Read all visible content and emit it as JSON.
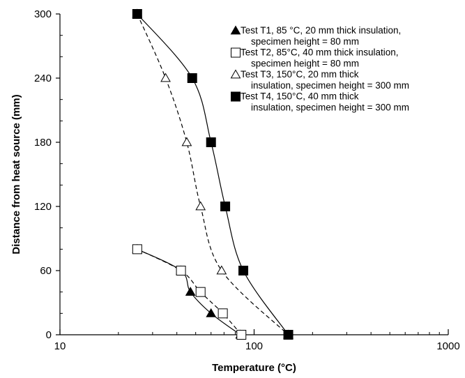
{
  "chart_data": {
    "type": "scatter",
    "xlabel": "Temperature (°C)",
    "ylabel": "Distance from heat source (mm)",
    "x_scale": "log",
    "xlim": [
      10,
      1000
    ],
    "ylim": [
      0,
      300
    ],
    "x_ticks": [
      10,
      100,
      1000
    ],
    "y_ticks": [
      0,
      60,
      120,
      180,
      240,
      300
    ],
    "grid": false,
    "legend_position": "top-right",
    "series": [
      {
        "name_lines": [
          "Test T1, 85 °C, 20 mm thick insulation,",
          "specimen height = 80 mm"
        ],
        "marker": "filled-triangle",
        "line_style": "solid",
        "points": [
          [
            25,
            80
          ],
          [
            42,
            60
          ],
          [
            47,
            40
          ],
          [
            60,
            20
          ],
          [
            85,
            0
          ]
        ]
      },
      {
        "name_lines": [
          "Test T2, 85°C, 40 mm thick insulation,",
          "specimen height = 80 mm"
        ],
        "marker": "open-square",
        "line_style": "dashed",
        "points": [
          [
            25,
            80
          ],
          [
            42,
            60
          ],
          [
            53,
            40
          ],
          [
            69,
            20
          ],
          [
            86,
            0
          ]
        ]
      },
      {
        "name_lines": [
          "Test T3, 150°C, 20 mm thick",
          "insulation, specimen height = 300 mm"
        ],
        "marker": "open-triangle",
        "line_style": "dashed",
        "points": [
          [
            25,
            300
          ],
          [
            35,
            240
          ],
          [
            45,
            180
          ],
          [
            53,
            120
          ],
          [
            68,
            60
          ],
          [
            150,
            0
          ]
        ]
      },
      {
        "name_lines": [
          "Test T4, 150°C, 40 mm thick",
          "insulation, specimen height = 300 mm"
        ],
        "marker": "filled-square",
        "line_style": "solid",
        "points": [
          [
            25,
            300
          ],
          [
            48,
            240
          ],
          [
            60,
            180
          ],
          [
            71,
            120
          ],
          [
            88,
            60
          ],
          [
            150,
            0
          ]
        ]
      }
    ]
  }
}
